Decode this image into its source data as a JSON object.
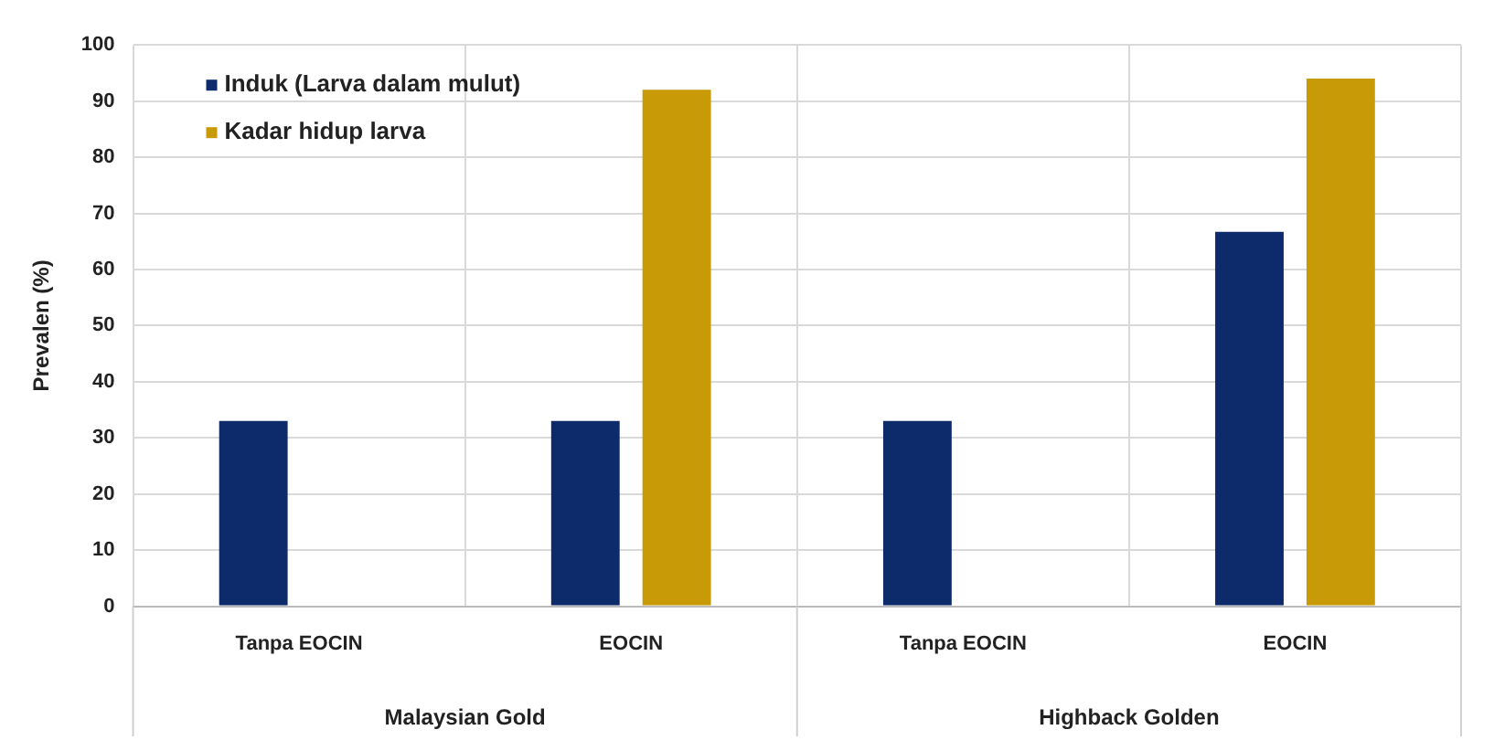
{
  "chart_data": {
    "type": "bar",
    "ylabel": "Prevalen (%)",
    "categories": [
      "Tanpa EOCIN",
      "EOCIN",
      "Tanpa EOCIN",
      "EOCIN"
    ],
    "series": [
      {
        "name": "Induk (Larva dalam mulut)",
        "color": "#0d2a6b",
        "values": [
          33,
          33,
          33,
          66.7
        ]
      },
      {
        "name": "Kadar hidup larva",
        "color": "#c99a08",
        "values": [
          null,
          92,
          null,
          94
        ]
      }
    ],
    "ylim": [
      0,
      100
    ],
    "yticks": [
      0,
      10,
      20,
      30,
      40,
      50,
      60,
      70,
      80,
      90,
      100
    ],
    "grid": true,
    "legend": "top left",
    "annotations": [
      "Malaysian Gold",
      "Highback Golden"
    ]
  }
}
